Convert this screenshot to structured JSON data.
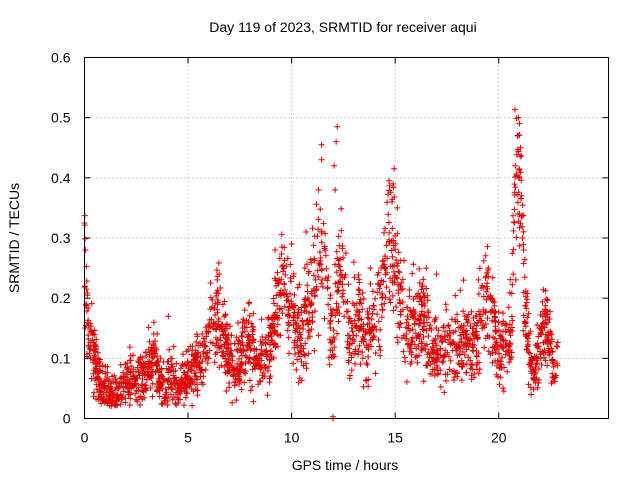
{
  "chart_data": {
    "type": "scatter",
    "title": "Day 119 of 2023, SRMTID for receiver aqui",
    "xlabel": "GPS time / hours",
    "ylabel": "SRMTID / TECUs",
    "xlim": [
      0,
      25.3
    ],
    "ylim": [
      0,
      0.6
    ],
    "x_ticks": [
      0,
      5,
      10,
      15,
      20
    ],
    "x_tick_labels": [
      "0",
      "5",
      "10",
      "15",
      "20"
    ],
    "y_ticks": [
      0,
      0.1,
      0.2,
      0.3,
      0.4,
      0.5,
      0.6
    ],
    "y_tick_labels": [
      "0",
      "0.1",
      "0.2",
      "0.3",
      "0.4",
      "0.5",
      "0.6"
    ],
    "grid": true,
    "marker": "+",
    "color": "#e00000",
    "series": [
      {
        "name": "SRMTID",
        "profile": [
          [
            0.0,
            0.3
          ],
          [
            0.1,
            0.18
          ],
          [
            0.2,
            0.13
          ],
          [
            0.4,
            0.11
          ],
          [
            0.6,
            0.08
          ],
          [
            0.8,
            0.05
          ],
          [
            1.0,
            0.05
          ],
          [
            1.2,
            0.04
          ],
          [
            1.4,
            0.04
          ],
          [
            1.6,
            0.04
          ],
          [
            1.8,
            0.05
          ],
          [
            2.0,
            0.06
          ],
          [
            2.2,
            0.06
          ],
          [
            2.4,
            0.07
          ],
          [
            2.6,
            0.07
          ],
          [
            2.8,
            0.07
          ],
          [
            3.0,
            0.08
          ],
          [
            3.2,
            0.09
          ],
          [
            3.4,
            0.11
          ],
          [
            3.6,
            0.07
          ],
          [
            3.8,
            0.06
          ],
          [
            4.0,
            0.06
          ],
          [
            4.2,
            0.07
          ],
          [
            4.4,
            0.06
          ],
          [
            4.6,
            0.05
          ],
          [
            4.8,
            0.06
          ],
          [
            5.0,
            0.07
          ],
          [
            5.2,
            0.08
          ],
          [
            5.4,
            0.09
          ],
          [
            5.6,
            0.1
          ],
          [
            5.8,
            0.11
          ],
          [
            6.0,
            0.14
          ],
          [
            6.2,
            0.15
          ],
          [
            6.4,
            0.17
          ],
          [
            6.6,
            0.15
          ],
          [
            6.8,
            0.12
          ],
          [
            7.0,
            0.1
          ],
          [
            7.2,
            0.08
          ],
          [
            7.4,
            0.09
          ],
          [
            7.6,
            0.11
          ],
          [
            7.8,
            0.12
          ],
          [
            8.0,
            0.13
          ],
          [
            8.2,
            0.11
          ],
          [
            8.4,
            0.1
          ],
          [
            8.6,
            0.11
          ],
          [
            8.8,
            0.11
          ],
          [
            9.0,
            0.13
          ],
          [
            9.2,
            0.17
          ],
          [
            9.4,
            0.2
          ],
          [
            9.6,
            0.23
          ],
          [
            9.8,
            0.22
          ],
          [
            10.0,
            0.21
          ],
          [
            10.2,
            0.15
          ],
          [
            10.4,
            0.13
          ],
          [
            10.6,
            0.15
          ],
          [
            10.8,
            0.19
          ],
          [
            11.0,
            0.21
          ],
          [
            11.2,
            0.24
          ],
          [
            11.4,
            0.28
          ],
          [
            11.6,
            0.26
          ],
          [
            11.8,
            0.17
          ],
          [
            12.0,
            0.12
          ],
          [
            12.2,
            0.2
          ],
          [
            12.4,
            0.23
          ],
          [
            12.6,
            0.19
          ],
          [
            12.8,
            0.13
          ],
          [
            13.0,
            0.15
          ],
          [
            13.2,
            0.17
          ],
          [
            13.4,
            0.15
          ],
          [
            13.6,
            0.13
          ],
          [
            13.8,
            0.15
          ],
          [
            14.0,
            0.16
          ],
          [
            14.2,
            0.19
          ],
          [
            14.4,
            0.22
          ],
          [
            14.6,
            0.28
          ],
          [
            14.8,
            0.3
          ],
          [
            15.0,
            0.25
          ],
          [
            15.2,
            0.2
          ],
          [
            15.4,
            0.17
          ],
          [
            15.6,
            0.14
          ],
          [
            15.8,
            0.15
          ],
          [
            16.0,
            0.17
          ],
          [
            16.2,
            0.17
          ],
          [
            16.4,
            0.16
          ],
          [
            16.6,
            0.14
          ],
          [
            16.8,
            0.12
          ],
          [
            17.0,
            0.11
          ],
          [
            17.2,
            0.1
          ],
          [
            17.4,
            0.12
          ],
          [
            17.6,
            0.13
          ],
          [
            17.8,
            0.14
          ],
          [
            18.0,
            0.13
          ],
          [
            18.2,
            0.12
          ],
          [
            18.4,
            0.13
          ],
          [
            18.6,
            0.11
          ],
          [
            18.8,
            0.12
          ],
          [
            19.0,
            0.15
          ],
          [
            19.2,
            0.18
          ],
          [
            19.4,
            0.2
          ],
          [
            19.6,
            0.17
          ],
          [
            19.8,
            0.14
          ],
          [
            20.0,
            0.11
          ],
          [
            20.2,
            0.12
          ],
          [
            20.4,
            0.12
          ],
          [
            20.6,
            0.15
          ],
          [
            20.8,
            0.4
          ],
          [
            21.0,
            0.42
          ],
          [
            21.1,
            0.32
          ],
          [
            21.3,
            0.18
          ],
          [
            21.5,
            0.11
          ],
          [
            21.7,
            0.08
          ],
          [
            21.9,
            0.1
          ],
          [
            22.1,
            0.14
          ],
          [
            22.3,
            0.16
          ],
          [
            22.5,
            0.12
          ],
          [
            22.7,
            0.08
          ],
          [
            22.85,
            0.09
          ]
        ],
        "spikes": [
          [
            0.0,
            0.325
          ],
          [
            0.05,
            0.28
          ],
          [
            0.1,
            0.215
          ],
          [
            11.45,
            0.455
          ],
          [
            11.45,
            0.43
          ],
          [
            11.3,
            0.38
          ],
          [
            12.2,
            0.485
          ],
          [
            12.15,
            0.46
          ],
          [
            12.05,
            0.42
          ],
          [
            12.1,
            0.38
          ],
          [
            14.95,
            0.415
          ],
          [
            14.9,
            0.39
          ],
          [
            14.85,
            0.36
          ],
          [
            15.1,
            0.35
          ],
          [
            20.95,
            0.5
          ],
          [
            21.0,
            0.49
          ],
          [
            20.9,
            0.47
          ],
          [
            21.05,
            0.45
          ],
          [
            20.8,
            0.42
          ],
          [
            21.0,
            0.4
          ],
          [
            21.1,
            0.37
          ],
          [
            21.0,
            0.34
          ],
          [
            21.2,
            0.28
          ],
          [
            21.15,
            0.3
          ],
          [
            13.0,
            0.26
          ],
          [
            10.0,
            0.29
          ],
          [
            10.7,
            0.31
          ],
          [
            6.5,
            0.24
          ],
          [
            4.05,
            0.17
          ],
          [
            3.35,
            0.16
          ],
          [
            16.5,
            0.25
          ],
          [
            17.0,
            0.24
          ],
          [
            18.3,
            0.23
          ],
          [
            19.5,
            0.25
          ],
          [
            9.2,
            0.28
          ],
          [
            13.8,
            0.25
          ]
        ],
        "low_points": [
          [
            12.0,
            0.0
          ],
          [
            12.0,
            0.003
          ]
        ]
      }
    ]
  }
}
